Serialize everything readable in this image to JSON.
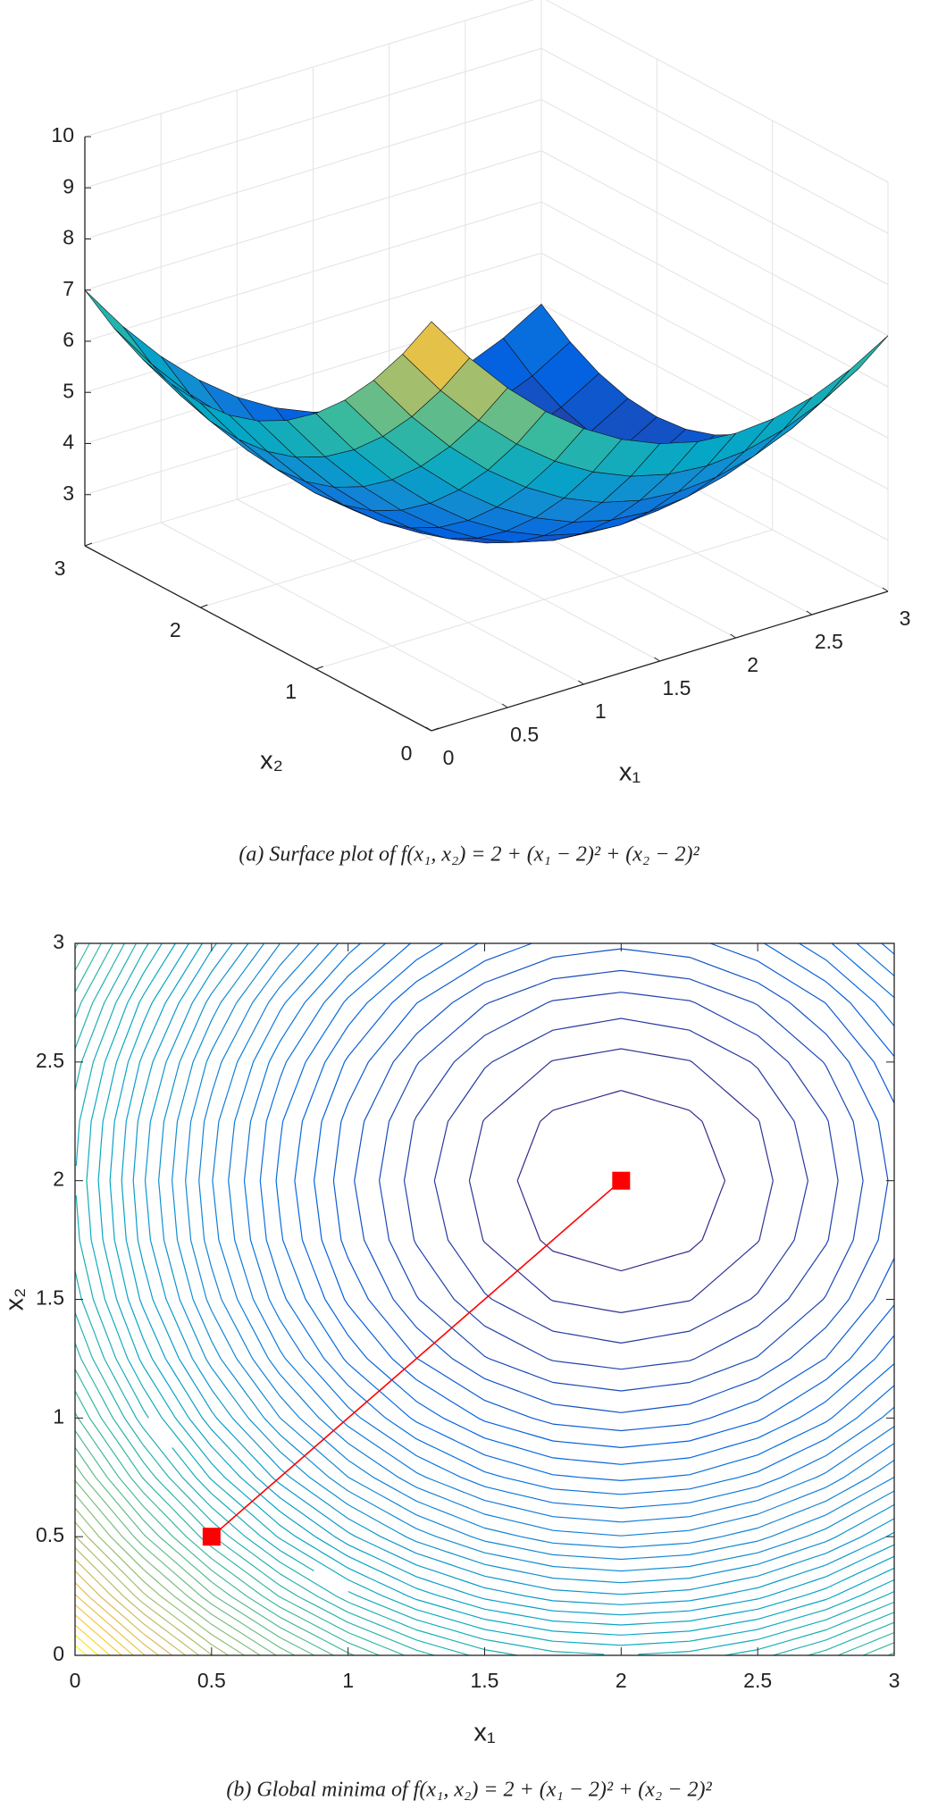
{
  "chart_data": [
    {
      "type": "surface",
      "caption": "(a) Surface plot of f(x₁, x₂) = 2 + (x₁ − 2)² + (x₂ − 2)²",
      "xlabel": "x₁",
      "ylabel": "x₂",
      "colormap": "parula",
      "grid": true,
      "xlim": [
        0,
        3
      ],
      "ylim": [
        0,
        3
      ],
      "zlim": [
        2,
        10
      ],
      "xticks": [
        0,
        0.5,
        1,
        1.5,
        2,
        2.5,
        3
      ],
      "yticks": [
        0,
        1,
        2,
        3
      ],
      "zticks": [
        3,
        4,
        5,
        6,
        7,
        8,
        9,
        10
      ],
      "x": [
        0,
        0.25,
        0.5,
        0.75,
        1,
        1.25,
        1.5,
        1.75,
        2,
        2.25,
        2.5,
        2.75,
        3
      ],
      "y": [
        0,
        0.25,
        0.5,
        0.75,
        1,
        1.25,
        1.5,
        1.75,
        2,
        2.25,
        2.5,
        2.75,
        3
      ],
      "z": [
        [
          10,
          9.0625,
          8.25,
          7.5625,
          7,
          6.5625,
          6.25,
          6.0625,
          6,
          6.0625,
          6.25,
          6.5625,
          7
        ],
        [
          9.0625,
          8.125,
          7.3125,
          6.625,
          6.0625,
          5.625,
          5.3125,
          5.125,
          5.0625,
          5.125,
          5.3125,
          5.625,
          6.0625
        ],
        [
          8.25,
          7.3125,
          6.5,
          5.8125,
          5.25,
          4.8125,
          4.5,
          4.3125,
          4.25,
          4.3125,
          4.5,
          4.8125,
          5.25
        ],
        [
          7.5625,
          6.625,
          5.8125,
          5.125,
          4.5625,
          4.125,
          3.8125,
          3.625,
          3.5625,
          3.625,
          3.8125,
          4.125,
          4.5625
        ],
        [
          7,
          6.0625,
          5.25,
          4.5625,
          4,
          3.5625,
          3.25,
          3.0625,
          3,
          3.0625,
          3.25,
          3.5625,
          4
        ],
        [
          6.5625,
          5.625,
          4.8125,
          4.125,
          3.5625,
          3.125,
          2.8125,
          2.625,
          2.5625,
          2.625,
          2.8125,
          3.125,
          3.5625
        ],
        [
          6.25,
          5.3125,
          4.5,
          3.8125,
          3.25,
          2.8125,
          2.5,
          2.3125,
          2.25,
          2.3125,
          2.5,
          2.8125,
          3.25
        ],
        [
          6.0625,
          5.125,
          4.3125,
          3.625,
          3.0625,
          2.625,
          2.3125,
          2.125,
          2.0625,
          2.125,
          2.3125,
          2.625,
          3.0625
        ],
        [
          6,
          5.0625,
          4.25,
          3.5625,
          3,
          2.5625,
          2.25,
          2.0625,
          2,
          2.0625,
          2.25,
          2.5625,
          3
        ],
        [
          6.0625,
          5.125,
          4.3125,
          3.625,
          3.0625,
          2.625,
          2.3125,
          2.125,
          2.0625,
          2.125,
          2.3125,
          2.625,
          3.0625
        ],
        [
          6.25,
          5.3125,
          4.5,
          3.8125,
          3.25,
          2.8125,
          2.5,
          2.3125,
          2.25,
          2.3125,
          2.5,
          2.8125,
          3.25
        ],
        [
          6.5625,
          5.625,
          4.8125,
          4.125,
          3.5625,
          3.125,
          2.8125,
          2.625,
          2.5625,
          2.625,
          2.8125,
          3.125,
          3.5625
        ],
        [
          7,
          6.0625,
          5.25,
          4.5625,
          4,
          3.5625,
          3.25,
          3.0625,
          3,
          3.0625,
          3.25,
          3.5625,
          4
        ]
      ]
    },
    {
      "type": "contour",
      "caption": "(b) Global minima of f(x₁, x₂) = 2 + (x₁ − 2)² + (x₂ − 2)²",
      "xlabel": "x₁",
      "ylabel": "x₂",
      "colormap": "parula",
      "xlim": [
        0,
        3
      ],
      "ylim": [
        0,
        3
      ],
      "xticks": [
        0,
        0.5,
        1,
        1.5,
        2,
        2.5,
        3
      ],
      "yticks": [
        0,
        0.5,
        1,
        1.5,
        2,
        2.5,
        3
      ],
      "levels": [
        2.16,
        2.32,
        2.48,
        2.64,
        2.8,
        2.96,
        3.12,
        3.28,
        3.44,
        3.6,
        3.76,
        3.92,
        4.08,
        4.24,
        4.4,
        4.56,
        4.72,
        4.88,
        5.04,
        5.2,
        5.36,
        5.52,
        5.68,
        5.84,
        6,
        6.16,
        6.32,
        6.48,
        6.64,
        6.8,
        6.96,
        7.12,
        7.28,
        7.44,
        7.6,
        7.76,
        7.92,
        8.08,
        8.24,
        8.4,
        8.56,
        8.72,
        8.88,
        9.04,
        9.2,
        9.36,
        9.52,
        9.68,
        9.84
      ],
      "x": [
        0,
        0.25,
        0.5,
        0.75,
        1,
        1.25,
        1.5,
        1.75,
        2,
        2.25,
        2.5,
        2.75,
        3
      ],
      "y": [
        0,
        0.25,
        0.5,
        0.75,
        1,
        1.25,
        1.5,
        1.75,
        2,
        2.25,
        2.5,
        2.75,
        3
      ],
      "z": [
        [
          10,
          9.0625,
          8.25,
          7.5625,
          7,
          6.5625,
          6.25,
          6.0625,
          6,
          6.0625,
          6.25,
          6.5625,
          7
        ],
        [
          9.0625,
          8.125,
          7.3125,
          6.625,
          6.0625,
          5.625,
          5.3125,
          5.125,
          5.0625,
          5.125,
          5.3125,
          5.625,
          6.0625
        ],
        [
          8.25,
          7.3125,
          6.5,
          5.8125,
          5.25,
          4.8125,
          4.5,
          4.3125,
          4.25,
          4.3125,
          4.5,
          4.8125,
          5.25
        ],
        [
          7.5625,
          6.625,
          5.8125,
          5.125,
          4.5625,
          4.125,
          3.8125,
          3.625,
          3.5625,
          3.625,
          3.8125,
          4.125,
          4.5625
        ],
        [
          7,
          6.0625,
          5.25,
          4.5625,
          4,
          3.5625,
          3.25,
          3.0625,
          3,
          3.0625,
          3.25,
          3.5625,
          4
        ],
        [
          6.5625,
          5.625,
          4.8125,
          4.125,
          3.5625,
          3.125,
          2.8125,
          2.625,
          2.5625,
          2.625,
          2.8125,
          3.125,
          3.5625
        ],
        [
          6.25,
          5.3125,
          4.5,
          3.8125,
          3.25,
          2.8125,
          2.5,
          2.3125,
          2.25,
          2.3125,
          2.5,
          2.8125,
          3.25
        ],
        [
          6.0625,
          5.125,
          4.3125,
          3.625,
          3.0625,
          2.625,
          2.3125,
          2.125,
          2.0625,
          2.125,
          2.3125,
          2.625,
          3.0625
        ],
        [
          6,
          5.0625,
          4.25,
          3.5625,
          3,
          2.5625,
          2.25,
          2.0625,
          2,
          2.0625,
          2.25,
          2.5625,
          3
        ],
        [
          6.0625,
          5.125,
          4.3125,
          3.625,
          3.0625,
          2.625,
          2.3125,
          2.125,
          2.0625,
          2.125,
          2.3125,
          2.625,
          3.0625
        ],
        [
          6.25,
          5.3125,
          4.5,
          3.8125,
          3.25,
          2.8125,
          2.5,
          2.3125,
          2.25,
          2.3125,
          2.5,
          2.8125,
          3.25
        ],
        [
          6.5625,
          5.625,
          4.8125,
          4.125,
          3.5625,
          3.125,
          2.8125,
          2.625,
          2.5625,
          2.625,
          2.8125,
          3.125,
          3.5625
        ],
        [
          7,
          6.0625,
          5.25,
          4.5625,
          4,
          3.5625,
          3.25,
          3.0625,
          3,
          3.0625,
          3.25,
          3.5625,
          4
        ]
      ],
      "series": [
        {
          "color": "#ff0000",
          "marker": "square",
          "x": [
            0.5,
            2
          ],
          "y": [
            0.5,
            2
          ]
        }
      ]
    }
  ]
}
